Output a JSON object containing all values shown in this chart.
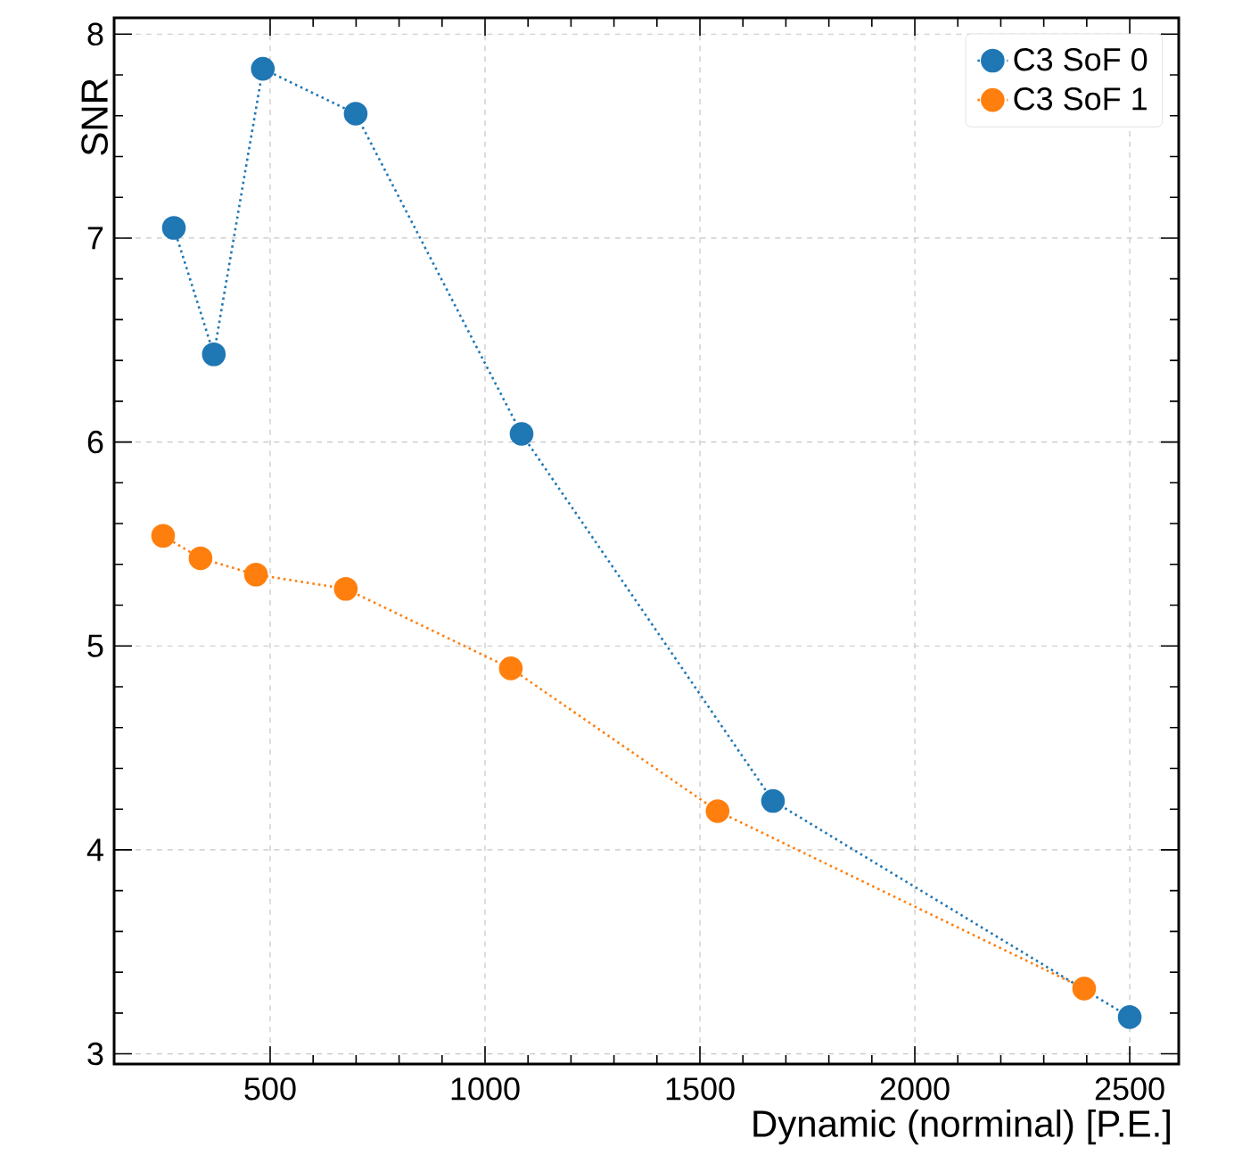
{
  "chart_data": {
    "type": "line",
    "xlabel": "Dynamic (norminal) [P.E.]",
    "ylabel": "SNR",
    "xlim": [
      137,
      2614
    ],
    "ylim": [
      2.95,
      8.08
    ],
    "xticks": [
      500,
      1000,
      1500,
      2000,
      2500
    ],
    "yticks": [
      3,
      4,
      5,
      6,
      7,
      8
    ],
    "grid": true,
    "legend": "top right",
    "marker": "circle",
    "line_style": "dotted",
    "series": [
      {
        "name": "C3 SoF 0",
        "color": "#1f77b4",
        "x": [
          276,
          369,
          483,
          699,
          1085,
          1670,
          2500
        ],
        "values": [
          7.05,
          6.43,
          7.83,
          7.61,
          6.04,
          4.24,
          3.18
        ]
      },
      {
        "name": "C3 SoF 1",
        "color": "#ff7f0e",
        "x": [
          251,
          338,
          467,
          676,
          1060,
          1541,
          2394
        ],
        "values": [
          5.54,
          5.43,
          5.35,
          5.28,
          4.89,
          4.19,
          3.32
        ]
      }
    ]
  }
}
